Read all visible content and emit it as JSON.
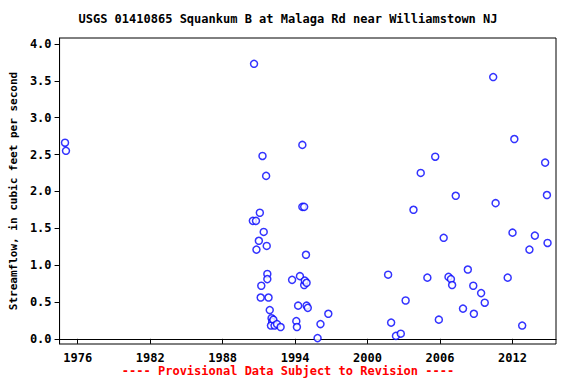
{
  "chart_data": {
    "type": "scatter",
    "title": "USGS 01410865 Squankum B at Malaga Rd near Williamstown NJ",
    "y_label": "Streamflow, in cubic feet per second",
    "annotation": "---- Provisional Data Subject to Revision ----",
    "color": "#0000ff",
    "marker": "open_circle",
    "grid": false,
    "xlim": [
      1974.5,
      2015.6
    ],
    "xticks": [
      1976,
      1982,
      1988,
      1994,
      2000,
      2006,
      2012
    ],
    "ylim": [
      -0.07,
      4.08
    ],
    "yticks": [
      {
        "value": 0,
        "label": "0.0"
      },
      {
        "value": 0.5,
        "label": "0.5"
      },
      {
        "value": 1,
        "label": "1.0"
      },
      {
        "value": 1.5,
        "label": "1.5"
      },
      {
        "value": 2,
        "label": "2.0"
      },
      {
        "value": 2.5,
        "label": "2.5"
      },
      {
        "value": 3,
        "label": "3.0"
      },
      {
        "value": 3.5,
        "label": "3.5"
      },
      {
        "value": 4,
        "label": "4.0"
      }
    ],
    "x": [
      1974.95,
      1975.03,
      1990.6,
      1990.5,
      1990.76,
      1990.8,
      1991.0,
      1991.08,
      1991.3,
      1991.4,
      1991.6,
      1991.65,
      1991.2,
      1991.15,
      1991.7,
      1991.7,
      1991.8,
      1991.9,
      1992.05,
      1992.1,
      1992.0,
      1992.2,
      1992.3,
      1992.5,
      1992.8,
      1993.75,
      1994.1,
      1994.15,
      1994.25,
      1994.4,
      1994.6,
      1994.6,
      1994.75,
      1994.75,
      1994.8,
      1994.9,
      1994.95,
      1994.95,
      1995.05,
      1995.86,
      1996.1,
      1996.75,
      2001.7,
      2001.95,
      2002.35,
      2002.75,
      2003.15,
      2003.8,
      2004.4,
      2004.95,
      2005.6,
      2005.9,
      2006.3,
      2006.7,
      2006.9,
      2007.0,
      2007.3,
      2007.9,
      2008.3,
      2008.75,
      2008.8,
      2009.4,
      2009.7,
      2010.4,
      2010.6,
      2011.6,
      2012.0,
      2012.15,
      2012.8,
      2013.4,
      2013.85,
      2014.7,
      2014.85,
      2014.9
    ],
    "values": [
      2.66,
      2.55,
      3.73,
      1.6,
      1.6,
      1.21,
      1.33,
      1.71,
      2.48,
      1.45,
      2.21,
      1.26,
      0.72,
      0.56,
      0.88,
      0.81,
      0.56,
      0.39,
      0.28,
      0.23,
      0.18,
      0.26,
      0.18,
      0.2,
      0.16,
      0.8,
      0.24,
      0.16,
      0.45,
      0.85,
      2.63,
      1.79,
      1.79,
      0.73,
      0.79,
      1.14,
      0.76,
      0.45,
      0.42,
      0.01,
      0.2,
      0.34,
      0.87,
      0.22,
      0.04,
      0.07,
      0.52,
      1.75,
      2.25,
      0.83,
      2.47,
      0.26,
      1.37,
      0.84,
      0.81,
      0.73,
      1.94,
      0.41,
      0.94,
      0.72,
      0.34,
      0.62,
      0.49,
      3.55,
      1.84,
      0.83,
      1.44,
      2.71,
      0.18,
      1.21,
      1.4,
      2.39,
      1.95,
      1.3
    ]
  }
}
